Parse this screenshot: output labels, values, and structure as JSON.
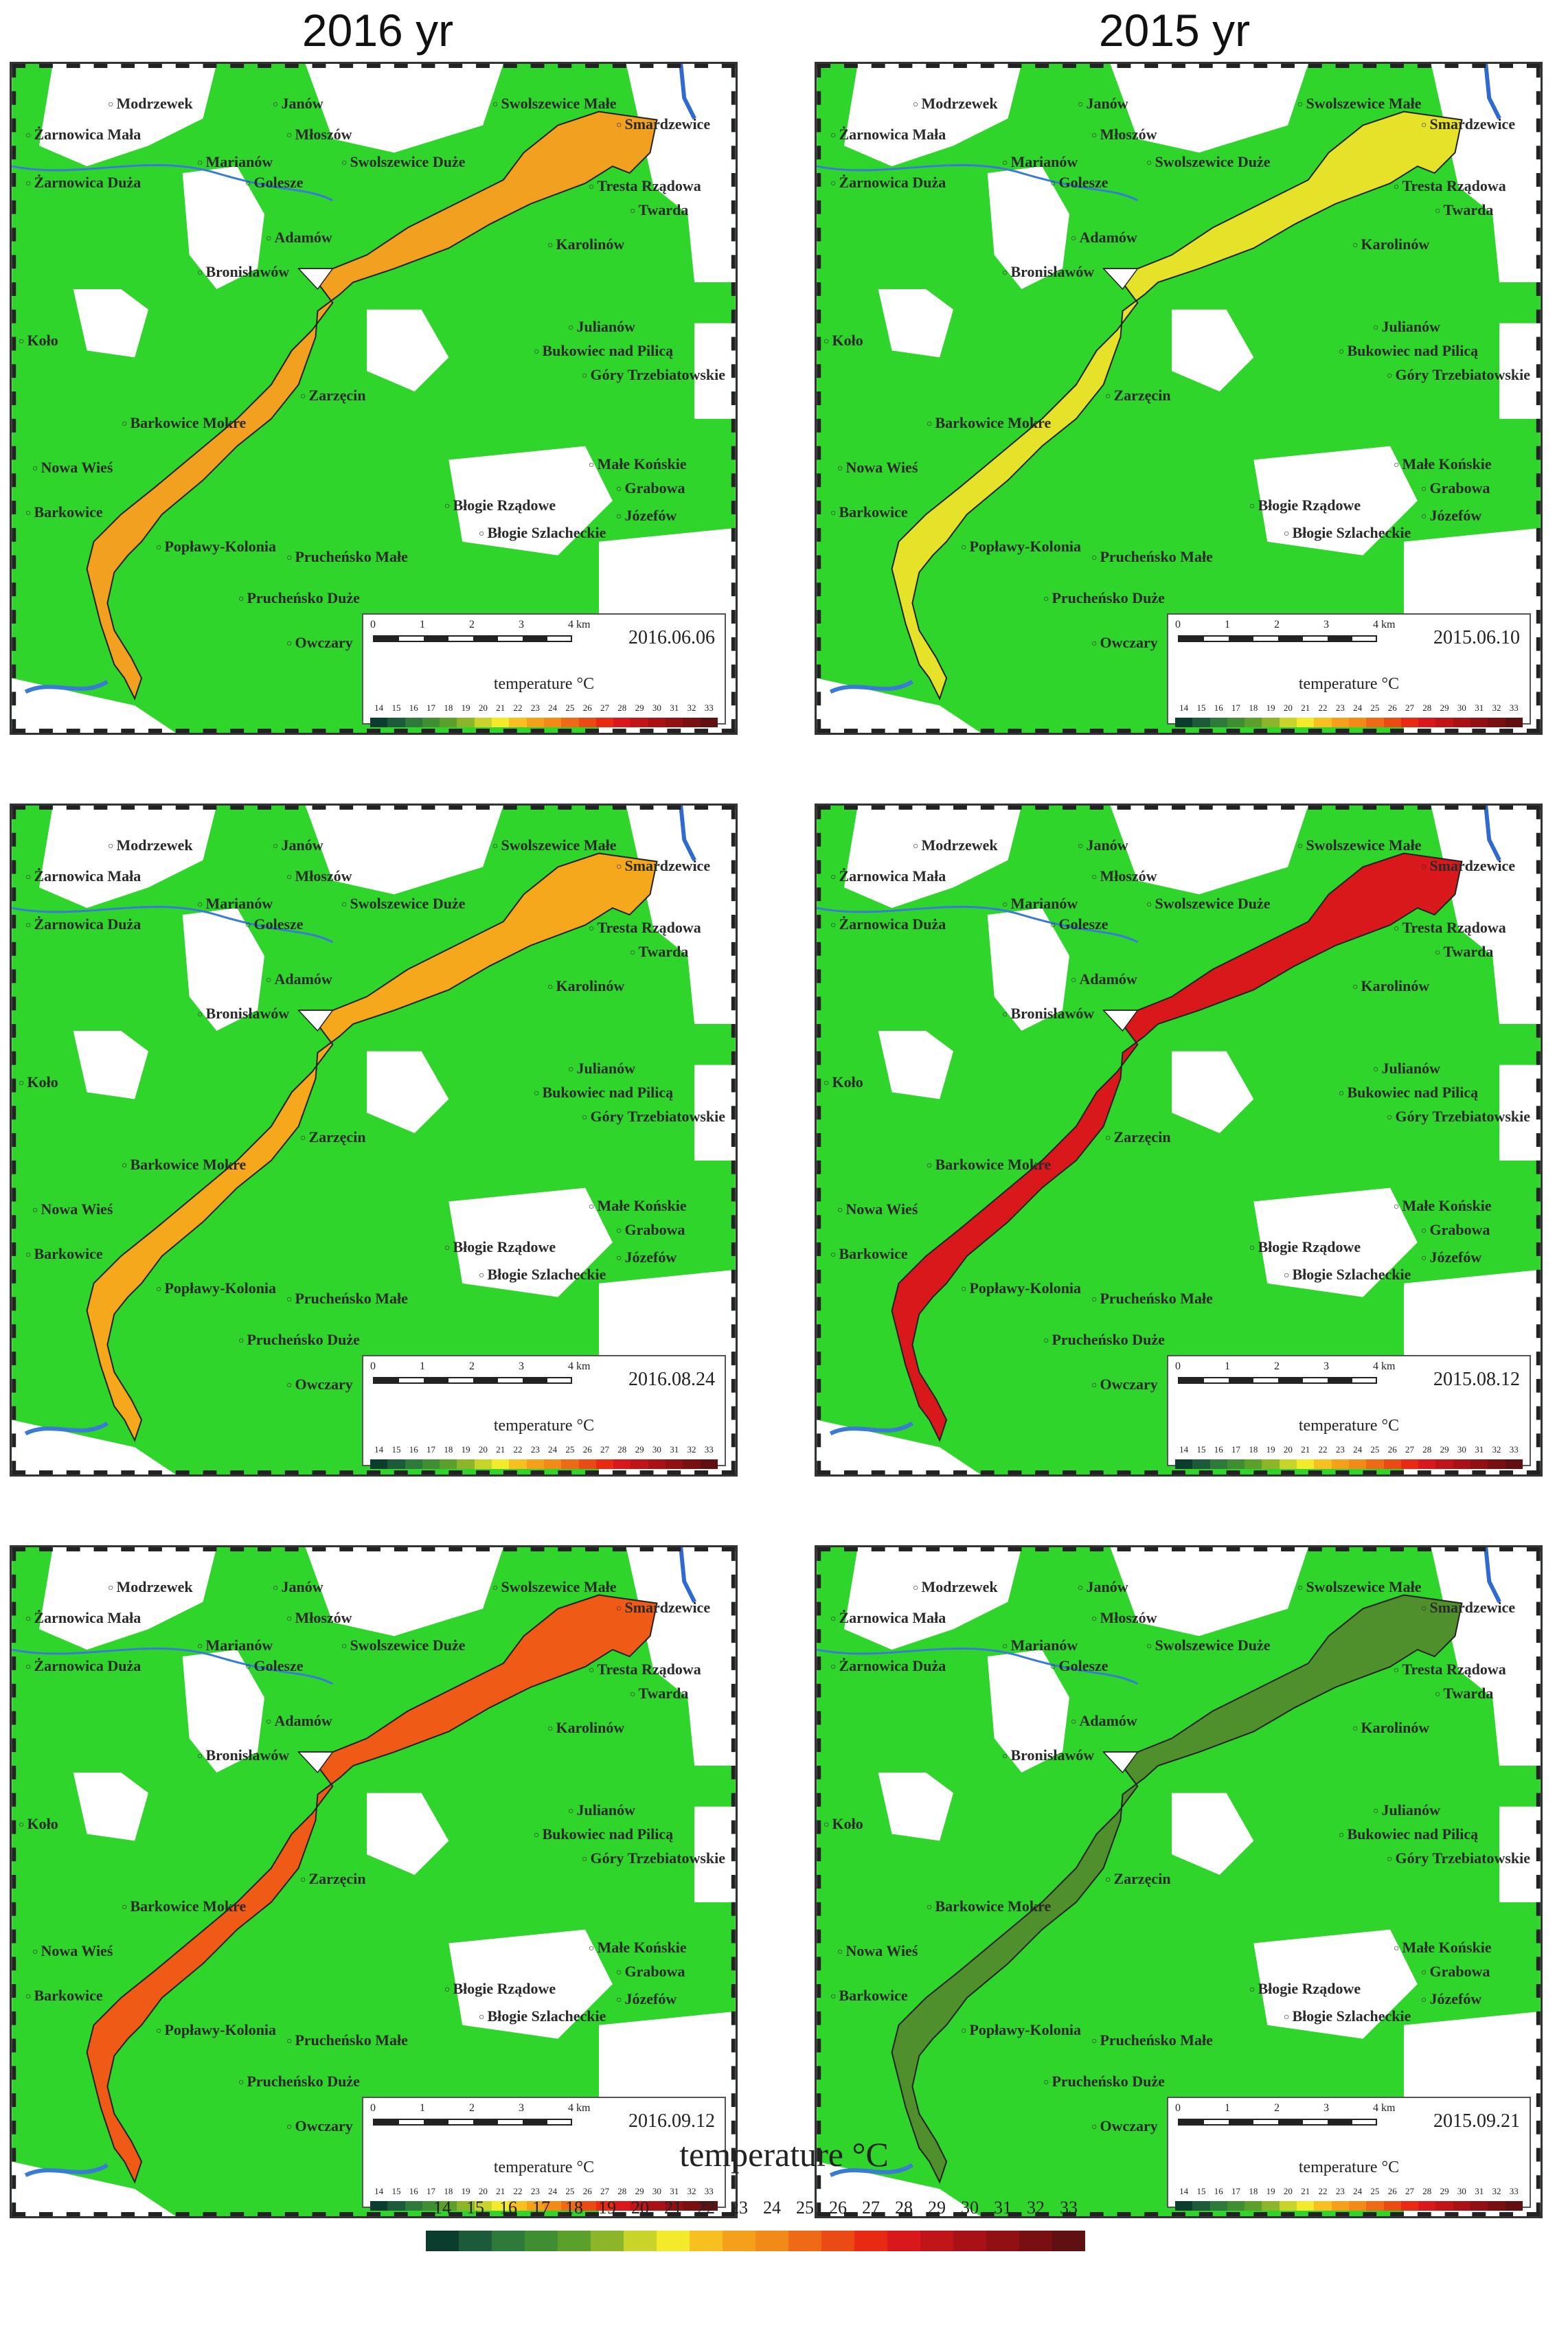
{
  "column_titles": [
    "2016 yr",
    "2015 yr"
  ],
  "place_names": [
    "Modrzewek",
    "Janów",
    "Żarnowica Mała",
    "Młoszów",
    "Swolszewice Małe",
    "Smardzewice",
    "Marianów",
    "Żarnowica Duża",
    "Golesze",
    "Swolszewice Duże",
    "Tresta Rządowa",
    "Twarda",
    "Adamów",
    "Karolinów",
    "Bronisławów",
    "Koło",
    "Julianów",
    "Bukowiec nad Pilicą",
    "Góry Trzebiatowskie",
    "Zarzęcin",
    "Barkowice Mokre",
    "Nowa Wieś",
    "Barkowice",
    "Małe Końskie",
    "Błogie Rządowe",
    "Grabowa",
    "Błogie Szlacheckie",
    "Józefów",
    "Popławy-Kolonia",
    "Pruchеńsko Małe",
    "Prucheńsko Duże",
    "Owczary"
  ],
  "scale_ticks": [
    "0",
    "1",
    "2",
    "3",
    "4 km"
  ],
  "legend_label": "temperature °C",
  "legend_ticks": [
    "14",
    "15",
    "16",
    "17",
    "18",
    "19",
    "20",
    "21",
    "22",
    "23",
    "24",
    "25",
    "26",
    "27",
    "28",
    "29",
    "30",
    "31",
    "32",
    "33"
  ],
  "legend_colors": [
    "#0b3d2e",
    "#1d5a3a",
    "#2e7a3a",
    "#3f8f32",
    "#5aa02a",
    "#8db52a",
    "#c8d42a",
    "#f2ea2a",
    "#f7c020",
    "#f5a01a",
    "#f28a18",
    "#ef6a16",
    "#ec4a14",
    "#e82a12",
    "#d8181a",
    "#c01418",
    "#a81216",
    "#901014",
    "#781012",
    "#601010"
  ],
  "panels": [
    {
      "date": "2016.06.06",
      "fill": "#f2a020",
      "year": "2016"
    },
    {
      "date": "2015.06.10",
      "fill": "#e6e22a",
      "year": "2015"
    },
    {
      "date": "2016.08.24",
      "fill": "#f5a81c",
      "year": "2016"
    },
    {
      "date": "2015.08.12",
      "fill": "#d8181a",
      "year": "2015"
    },
    {
      "date": "2016.09.12",
      "fill": "#ef5a16",
      "year": "2016"
    },
    {
      "date": "2015.09.21",
      "fill": "#4f8f2c",
      "year": "2015"
    }
  ],
  "bottom_legend_label": "temperature °C"
}
